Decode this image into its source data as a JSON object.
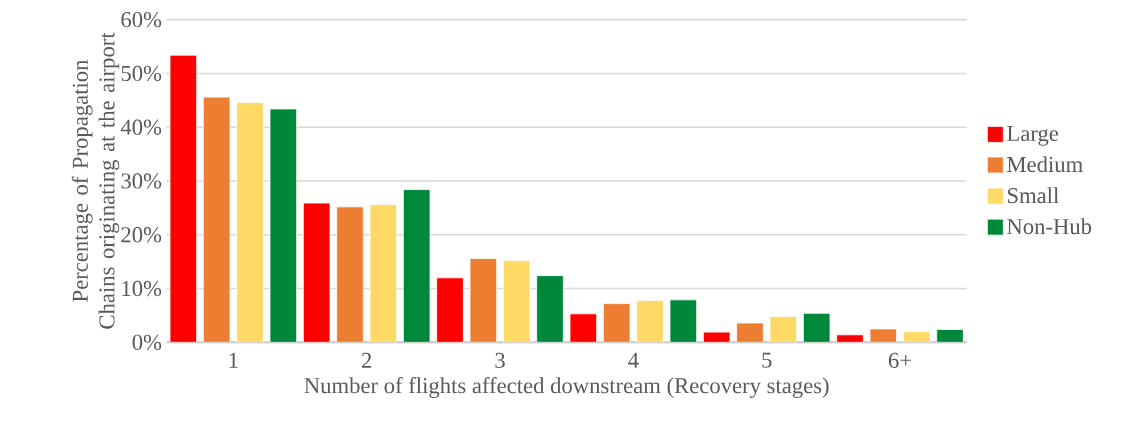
{
  "chart_data": {
    "type": "bar",
    "xlabel": "Number of flights affected downstream (Recovery stages)",
    "ylabel": "Percentage of Propagation Chains originating at the airport",
    "categories": [
      "1",
      "2",
      "3",
      "4",
      "5",
      "6+"
    ],
    "series": [
      {
        "name": "Large",
        "color": "#ff0000",
        "values": [
          53.4,
          25.9,
          12.0,
          5.3,
          1.9,
          1.4
        ]
      },
      {
        "name": "Medium",
        "color": "#ed7d31",
        "values": [
          45.6,
          25.2,
          15.6,
          7.2,
          3.6,
          2.5
        ]
      },
      {
        "name": "Small",
        "color": "#ffd966",
        "values": [
          44.6,
          25.6,
          15.2,
          7.8,
          4.8,
          2.0
        ]
      },
      {
        "name": "Non-Hub",
        "color": "#00883a",
        "values": [
          43.4,
          28.4,
          12.4,
          7.9,
          5.4,
          2.4
        ]
      }
    ],
    "ylim": [
      0,
      60
    ],
    "yticks": [
      {
        "value": 0,
        "label": "0%"
      },
      {
        "value": 10,
        "label": "10%"
      },
      {
        "value": 20,
        "label": "20%"
      },
      {
        "value": 30,
        "label": "30%"
      },
      {
        "value": 40,
        "label": "40%"
      },
      {
        "value": 50,
        "label": "50%"
      },
      {
        "value": 60,
        "label": "60%"
      }
    ],
    "grid": "y",
    "legend": "right"
  }
}
